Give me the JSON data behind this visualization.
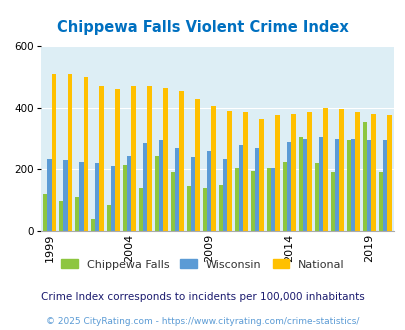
{
  "title": "Chippewa Falls Violent Crime Index",
  "years": [
    1999,
    2000,
    2001,
    2002,
    2003,
    2004,
    2005,
    2006,
    2007,
    2008,
    2009,
    2010,
    2011,
    2012,
    2013,
    2014,
    2015,
    2016,
    2017,
    2018,
    2019,
    2020
  ],
  "chippewa": [
    120,
    97,
    110,
    40,
    85,
    215,
    140,
    245,
    190,
    145,
    140,
    150,
    205,
    195,
    205,
    225,
    305,
    220,
    190,
    295,
    355,
    190
  ],
  "wisconsin": [
    235,
    230,
    225,
    220,
    210,
    245,
    285,
    295,
    270,
    240,
    260,
    235,
    280,
    270,
    205,
    290,
    300,
    305,
    300,
    300,
    295,
    295
  ],
  "national": [
    510,
    510,
    500,
    470,
    460,
    470,
    470,
    465,
    455,
    430,
    405,
    390,
    385,
    365,
    375,
    380,
    385,
    400,
    395,
    385,
    380,
    375
  ],
  "color_chippewa": "#8dc63f",
  "color_wisconsin": "#5b9bd5",
  "color_national": "#ffc000",
  "bg_color": "#ddeef5",
  "title_color": "#0070c0",
  "footer_note": "Crime Index corresponds to incidents per 100,000 inhabitants",
  "copyright": "© 2025 CityRating.com - https://www.cityrating.com/crime-statistics/",
  "ylim": [
    0,
    600
  ],
  "yticks": [
    0,
    200,
    400,
    600
  ],
  "xtick_years": [
    1999,
    2004,
    2009,
    2014,
    2019
  ],
  "bar_width": 0.27,
  "figwidth": 4.06,
  "figheight": 3.3,
  "dpi": 100
}
